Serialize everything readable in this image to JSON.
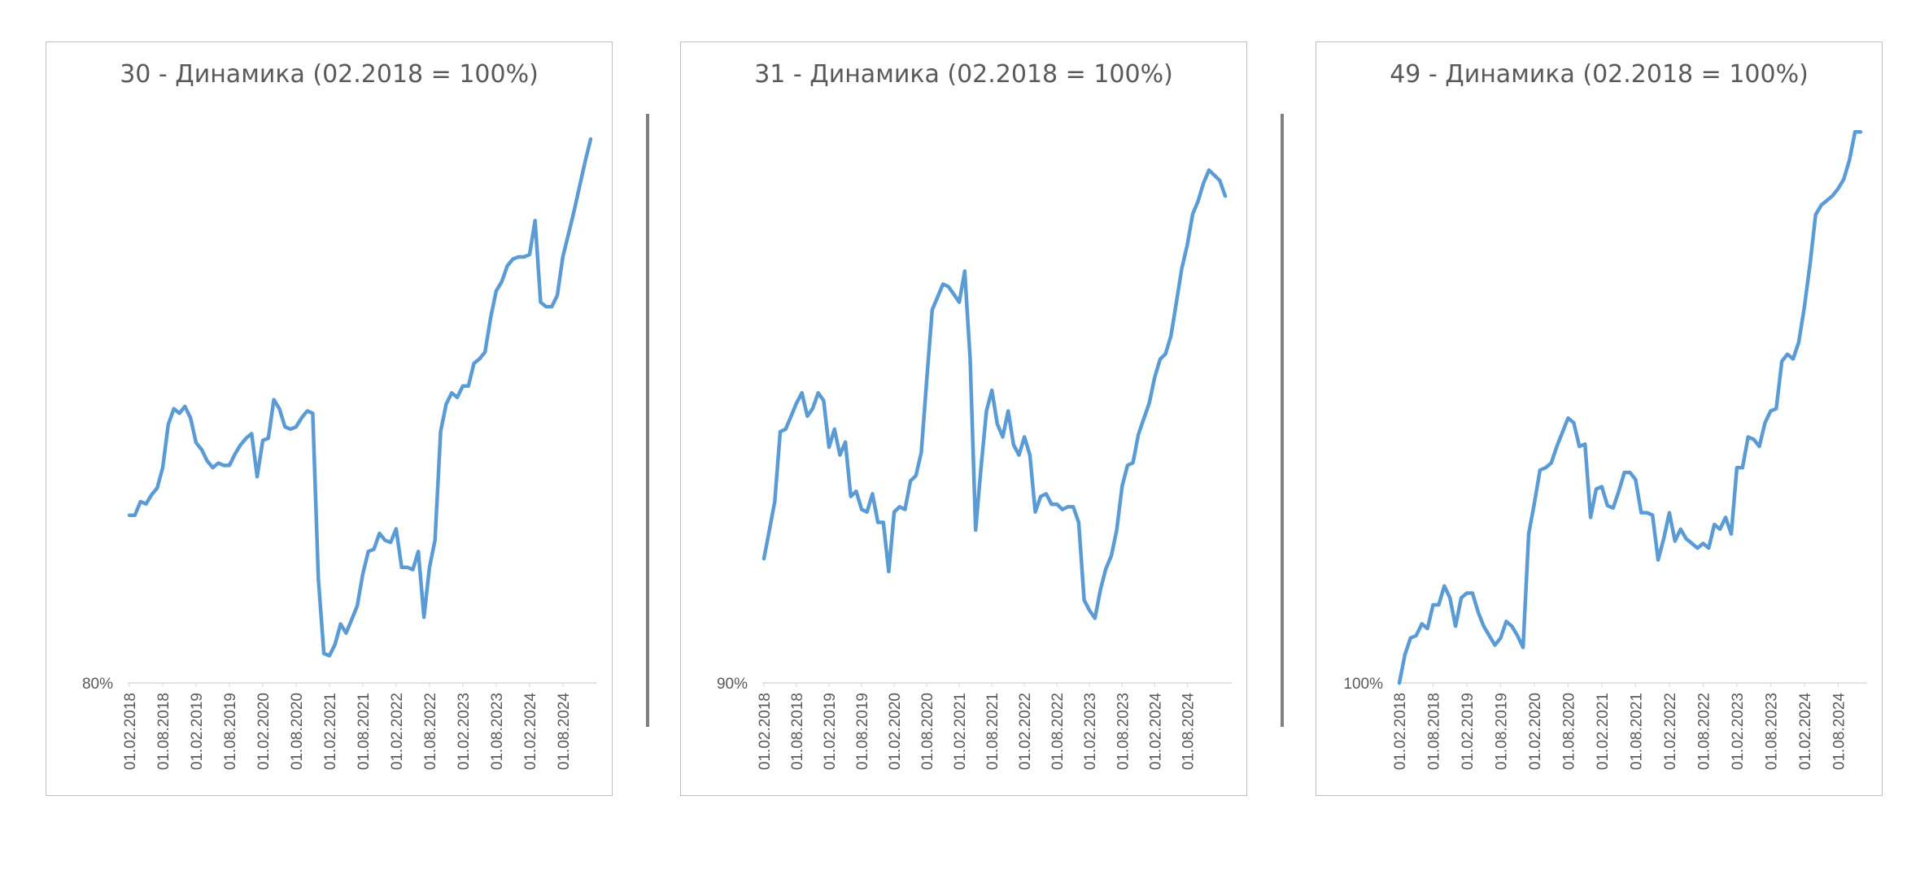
{
  "chart_data": [
    {
      "type": "line",
      "title": "30 - Динамика (02.2018 = 100%)",
      "y_tick_label": "80%",
      "ylim": [
        80,
        104
      ],
      "x_tick_labels": [
        "01.02.2018",
        "01.08.2018",
        "01.02.2019",
        "01.08.2019",
        "01.02.2020",
        "01.08.2020",
        "01.02.2021",
        "01.08.2021",
        "01.02.2022",
        "01.08.2022",
        "01.02.2023",
        "01.08.2023",
        "01.02.2024",
        "01.08.2024"
      ],
      "x_start": "2018-02",
      "color": "#5b9bd5",
      "values": [
        87.4,
        87.4,
        88.0,
        87.9,
        88.3,
        88.6,
        89.5,
        91.4,
        92.1,
        91.9,
        92.2,
        91.7,
        90.6,
        90.3,
        89.8,
        89.5,
        89.7,
        89.6,
        89.6,
        90.1,
        90.5,
        90.8,
        91.0,
        89.1,
        90.7,
        90.8,
        92.5,
        92.1,
        91.3,
        91.2,
        91.3,
        91.7,
        92.0,
        91.9,
        84.6,
        81.3,
        81.2,
        81.7,
        82.6,
        82.2,
        82.8,
        83.4,
        84.8,
        85.8,
        85.9,
        86.6,
        86.3,
        86.2,
        86.8,
        85.1,
        85.1,
        85.0,
        85.8,
        82.9,
        85.1,
        86.3,
        91.1,
        92.3,
        92.8,
        92.6,
        93.1,
        93.1,
        94.1,
        94.3,
        94.6,
        96.1,
        97.3,
        97.7,
        98.4,
        98.7,
        98.8,
        98.8,
        98.9,
        100.4,
        96.8,
        96.6,
        96.6,
        97.1,
        98.8,
        99.8,
        100.8,
        101.9,
        103.0,
        104.0
      ]
    },
    {
      "type": "line",
      "title": "31 - Динамика (02.2018 = 100%)",
      "y_tick_label": "90%",
      "ylim": [
        90,
        111
      ],
      "x_tick_labels": [
        "01.02.2018",
        "01.08.2018",
        "01.02.2019",
        "01.08.2019",
        "01.02.2020",
        "01.08.2020",
        "01.02.2021",
        "01.08.2021",
        "01.02.2022",
        "01.08.2022",
        "01.02.2023",
        "01.08.2023",
        "01.02.2024",
        "01.08.2024"
      ],
      "x_start": "2018-02",
      "color": "#5b9bd5",
      "values": [
        94.8,
        95.9,
        97.0,
        99.7,
        99.8,
        100.3,
        100.8,
        101.2,
        100.3,
        100.6,
        101.2,
        100.9,
        99.1,
        99.8,
        98.8,
        99.3,
        97.2,
        97.4,
        96.7,
        96.6,
        97.3,
        96.2,
        96.2,
        94.3,
        96.6,
        96.8,
        96.7,
        97.8,
        98.0,
        98.9,
        101.7,
        104.4,
        104.9,
        105.4,
        105.3,
        105.0,
        104.7,
        105.9,
        102.5,
        95.9,
        98.3,
        100.5,
        101.3,
        100.0,
        99.5,
        100.5,
        99.2,
        98.8,
        99.5,
        98.8,
        96.6,
        97.2,
        97.3,
        96.9,
        96.9,
        96.7,
        96.8,
        96.8,
        96.2,
        93.2,
        92.8,
        92.5,
        93.6,
        94.4,
        94.9,
        95.9,
        97.6,
        98.4,
        98.5,
        99.6,
        100.2,
        100.8,
        101.8,
        102.5,
        102.7,
        103.4,
        104.7,
        106.0,
        106.9,
        108.1,
        108.6,
        109.3,
        109.8,
        109.6,
        109.4,
        108.8
      ]
    },
    {
      "type": "line",
      "title": "49 - Динамика (02.2018 = 100%)",
      "y_tick_label": "100%",
      "ylim": [
        100,
        123
      ],
      "x_tick_labels": [
        "01.02.2018",
        "01.08.2018",
        "01.02.2019",
        "01.08.2019",
        "01.02.2020",
        "01.08.2020",
        "01.02.2021",
        "01.08.2021",
        "01.02.2022",
        "01.08.2022",
        "01.02.2023",
        "01.08.2023",
        "01.02.2024",
        "01.08.2024"
      ],
      "x_start": "2018-02",
      "color": "#5b9bd5",
      "values": [
        100.0,
        101.2,
        101.9,
        102.0,
        102.5,
        102.3,
        103.3,
        103.3,
        104.1,
        103.6,
        102.4,
        103.6,
        103.8,
        103.8,
        103.0,
        102.4,
        102.0,
        101.6,
        101.9,
        102.6,
        102.4,
        102.0,
        101.5,
        106.3,
        107.6,
        109.0,
        109.1,
        109.3,
        110.0,
        110.6,
        111.2,
        111.0,
        110.0,
        110.1,
        107.0,
        108.2,
        108.3,
        107.5,
        107.4,
        108.1,
        108.9,
        108.9,
        108.6,
        107.2,
        107.2,
        107.1,
        105.2,
        106.1,
        107.2,
        106.0,
        106.5,
        106.1,
        105.9,
        105.7,
        105.9,
        105.7,
        106.7,
        106.5,
        107.0,
        106.3,
        109.1,
        109.1,
        110.4,
        110.3,
        110.0,
        111.0,
        111.5,
        111.6,
        113.6,
        113.9,
        113.7,
        114.4,
        115.9,
        117.7,
        119.8,
        120.2,
        120.4,
        120.6,
        120.9,
        121.3,
        122.1,
        123.3,
        123.3
      ]
    }
  ]
}
